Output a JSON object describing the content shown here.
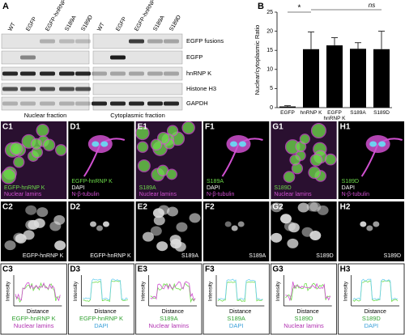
{
  "panel_a": {
    "label": "A",
    "lanes": [
      "WT",
      "EGFP",
      "EGFP-hnRNP K",
      "S189A",
      "S189D"
    ],
    "rows": [
      "EGFP fusions",
      "EGFP",
      "hnRNP K",
      "Histone H3",
      "GAPDH"
    ],
    "fractions": [
      "Nuclear fraction",
      "Cytoplasmic fraction"
    ]
  },
  "chart_data": {
    "type": "bar",
    "panel_label": "B",
    "y_label": "Nuclear/cytoplasmic Ratio",
    "categories": [
      "EGFP",
      "hnRNP K",
      "EGFP hnRNP K",
      "S189A",
      "S189D"
    ],
    "values": [
      0.3,
      15.3,
      16.3,
      15.4,
      15.3
    ],
    "errors": [
      0.2,
      4.5,
      2,
      1.6,
      4.7
    ],
    "color": "#000000",
    "ylim": [
      0,
      25
    ],
    "yticks": [
      0,
      5,
      10,
      15,
      20,
      25
    ],
    "annotations": [
      "*",
      "ns"
    ]
  },
  "columns": [
    {
      "row1": {
        "label": "C1",
        "texts": [
          "EGFP-hnRNP K",
          "Nuclear lamins"
        ]
      },
      "row2": {
        "label": "C2",
        "text": "EGFP-hnRNP K"
      },
      "row3": {
        "label": "C3",
        "y_label": "Intensity",
        "x_label": "Distance",
        "legend": [
          "EGFP-hnRNP K",
          "Nuclear lamins"
        ]
      }
    },
    {
      "row1": {
        "label": "D1",
        "texts": [
          "EGFP-hnRNP K",
          "DAPI",
          "N-β-tubulin"
        ]
      },
      "row2": {
        "label": "D2",
        "text": "EGFP-hnRNP K"
      },
      "row3": {
        "label": "D3",
        "y_label": "Intensity",
        "x_label": "Distance",
        "legend": [
          "EGFP-hnRNP K",
          "DAPI"
        ]
      }
    },
    {
      "row1": {
        "label": "E1",
        "texts": [
          "S189A",
          "Nuclear lamins"
        ]
      },
      "row2": {
        "label": "E2",
        "text": "S189A"
      },
      "row3": {
        "label": "E3",
        "y_label": "Intensity",
        "x_label": "Distance",
        "legend": [
          "S189A",
          "Nuclear lamins"
        ]
      }
    },
    {
      "row1": {
        "label": "F1",
        "texts": [
          "S189A",
          "DAPI",
          "N-β-tubulin"
        ]
      },
      "row2": {
        "label": "F2",
        "text": "S189A"
      },
      "row3": {
        "label": "F3",
        "y_label": "Intensity",
        "x_label": "Distance",
        "legend": [
          "S189A",
          "DAPI"
        ]
      }
    },
    {
      "row1": {
        "label": "G1",
        "texts": [
          "S189D",
          "Nuclear lamins"
        ]
      },
      "row2": {
        "label": "G2",
        "text": "S189D"
      },
      "row3": {
        "label": "G3",
        "y_label": "Intensity",
        "x_label": "Distance",
        "legend": [
          "S189D",
          "Nuclear lamins"
        ]
      }
    },
    {
      "row1": {
        "label": "H1",
        "texts": [
          "S189D",
          "DAPI",
          "N-β-tubulin"
        ]
      },
      "row2": {
        "label": "H2",
        "text": "S189D"
      },
      "row3": {
        "label": "H3",
        "y_label": "Intensity",
        "x_label": "Distance",
        "legend": [
          "S189D",
          "DAPI"
        ]
      }
    }
  ]
}
